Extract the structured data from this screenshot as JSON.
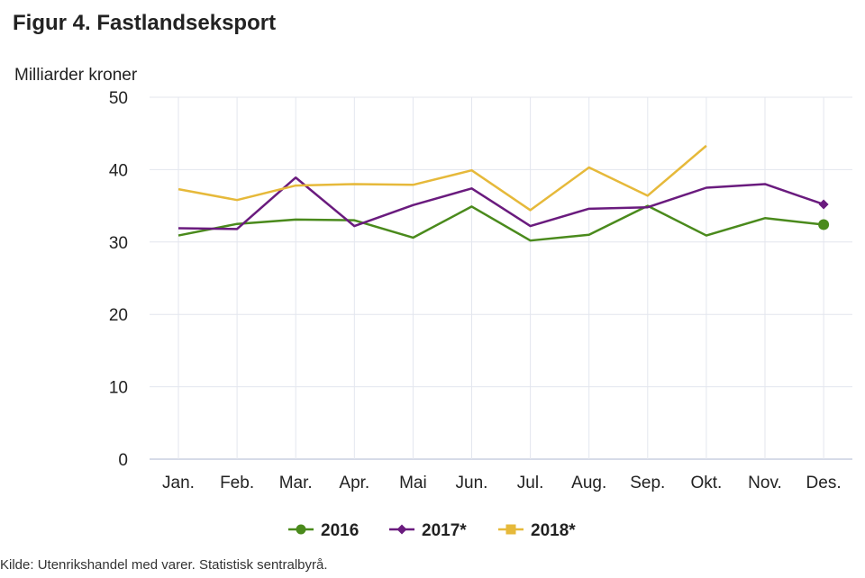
{
  "title": "Figur 4. Fastlandseksport",
  "source": "Kilde: Utenrikshandel med varer. Statistisk sentralbyrå.",
  "chart_data": {
    "type": "line",
    "title": "Figur 4. Fastlandseksport",
    "ylabel": "Milliarder kroner",
    "xlabel": "",
    "ylim": [
      0,
      50
    ],
    "yticks": [
      "0",
      "10",
      "20",
      "30",
      "40",
      "50"
    ],
    "categories": [
      "Jan.",
      "Feb.",
      "Mar.",
      "Apr.",
      "Mai",
      "Jun.",
      "Jul.",
      "Aug.",
      "Sep.",
      "Okt.",
      "Nov.",
      "Des."
    ],
    "grid": true,
    "legend": "bottom-center",
    "series": [
      {
        "name": "2016",
        "color": "#4a8a1c",
        "marker": "circle",
        "values": [
          30.9,
          32.5,
          33.1,
          33.0,
          30.6,
          34.9,
          30.2,
          31.0,
          35.0,
          30.9,
          33.3,
          32.4
        ]
      },
      {
        "name": "2017*",
        "color": "#6a1b7e",
        "marker": "diamond",
        "values": [
          31.9,
          31.8,
          38.9,
          32.2,
          35.1,
          37.4,
          32.2,
          34.6,
          34.8,
          37.5,
          38.0,
          35.2
        ]
      },
      {
        "name": "2018*",
        "color": "#e6b93a",
        "marker": "square",
        "values": [
          37.3,
          35.8,
          37.8,
          38.0,
          37.9,
          39.9,
          34.4,
          40.3,
          36.4,
          43.3,
          null,
          null
        ]
      }
    ]
  }
}
